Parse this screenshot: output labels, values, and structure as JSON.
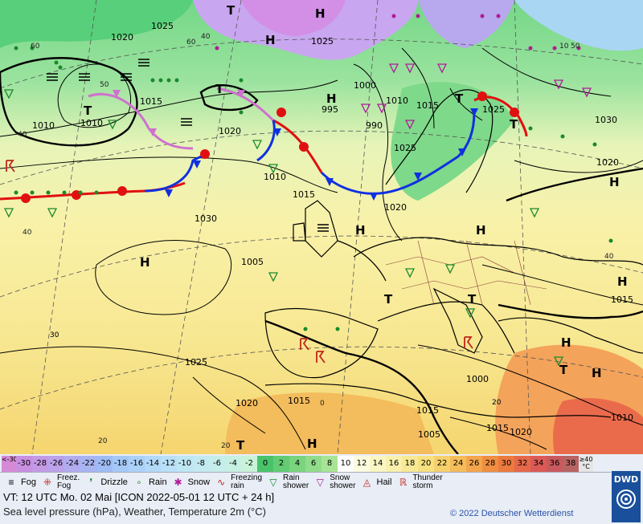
{
  "map": {
    "isobars": [
      "1020",
      "1025",
      "1015",
      "1010",
      "1030",
      "1025",
      "1020",
      "1015",
      "1010",
      "1005",
      "1000",
      "995",
      "990",
      "1025",
      "1020",
      "1015",
      "1010",
      "1020",
      "1025",
      "1030",
      "1015",
      "1020",
      "1025",
      "1015",
      "1010",
      "1005",
      "1000",
      "1015",
      "1020",
      "1015",
      "1010"
    ],
    "pressure_centers": [
      {
        "kind": "H"
      },
      {
        "kind": "H"
      },
      {
        "kind": "T"
      },
      {
        "kind": "T"
      },
      {
        "kind": "H"
      },
      {
        "kind": "T"
      },
      {
        "kind": "H"
      },
      {
        "kind": "H"
      },
      {
        "kind": "H"
      },
      {
        "kind": "H"
      },
      {
        "kind": "T"
      },
      {
        "kind": "T"
      },
      {
        "kind": "H"
      },
      {
        "kind": "T"
      },
      {
        "kind": "T"
      },
      {
        "kind": "H"
      },
      {
        "kind": "H"
      },
      {
        "kind": "T"
      },
      {
        "kind": "H"
      },
      {
        "kind": "T"
      }
    ],
    "temp_labels": [
      "60",
      "50",
      "40",
      "40",
      "40",
      "30",
      "20",
      "20",
      "20",
      "40",
      "50",
      "60",
      "10",
      "0",
      "20",
      "30"
    ],
    "colors": {
      "warm_front": "#e01010",
      "cold_front": "#1030e0",
      "occluded_front": "#d070d0",
      "isobar": "#000000"
    }
  },
  "scale": {
    "cells": [
      {
        "label": "<-30",
        "color": "#d58ad5"
      },
      {
        "label": "-30",
        "color": "#c98fe0"
      },
      {
        "label": "-28",
        "color": "#c49ae6"
      },
      {
        "label": "-26",
        "color": "#bba2ea"
      },
      {
        "label": "-24",
        "color": "#b2acef"
      },
      {
        "label": "-22",
        "color": "#a8b4f2"
      },
      {
        "label": "-20",
        "color": "#9ebcf5"
      },
      {
        "label": "-18",
        "color": "#a5c8f7"
      },
      {
        "label": "-16",
        "color": "#acd1f8"
      },
      {
        "label": "-14",
        "color": "#b3d9f8"
      },
      {
        "label": "-12",
        "color": "#b9e0f7"
      },
      {
        "label": "-10",
        "color": "#bfe6f3"
      },
      {
        "label": "-8",
        "color": "#c3eaf0"
      },
      {
        "label": "-6",
        "color": "#c5eeea"
      },
      {
        "label": "-4",
        "color": "#c6f0e2"
      },
      {
        "label": "-2",
        "color": "#c8f3d9"
      },
      {
        "label": "0",
        "color": "#49c36a"
      },
      {
        "label": "2",
        "color": "#62cc74"
      },
      {
        "label": "4",
        "color": "#79d47e"
      },
      {
        "label": "6",
        "color": "#90dc8a"
      },
      {
        "label": "8",
        "color": "#a8e496"
      },
      {
        "label": "10",
        "color": "#ffffff"
      },
      {
        "label": "12",
        "color": "#fbfbde"
      },
      {
        "label": "14",
        "color": "#f9f6c4"
      },
      {
        "label": "16",
        "color": "#f8f0ac"
      },
      {
        "label": "18",
        "color": "#f7e995"
      },
      {
        "label": "20",
        "color": "#f7e07f"
      },
      {
        "label": "22",
        "color": "#f6d06c"
      },
      {
        "label": "24",
        "color": "#f5bc5a"
      },
      {
        "label": "26",
        "color": "#f3a64c"
      },
      {
        "label": "28",
        "color": "#f08e42"
      },
      {
        "label": "30",
        "color": "#ec7a3f"
      },
      {
        "label": "32",
        "color": "#e6684a"
      },
      {
        "label": "34",
        "color": "#dc5a55"
      },
      {
        "label": "36",
        "color": "#c9595e"
      },
      {
        "label": "38",
        "color": "#b86462"
      },
      {
        "label": "≥40 °C",
        "color": "#e6e6e6"
      }
    ]
  },
  "legend": [
    {
      "icon": "fog-icon",
      "label": "Fog"
    },
    {
      "icon": "freezing-fog-icon",
      "label": "Freez.\nFog"
    },
    {
      "icon": "drizzle-icon",
      "label": "Drizzle"
    },
    {
      "icon": "rain-icon",
      "label": "Rain"
    },
    {
      "icon": "snow-icon",
      "label": "Snow"
    },
    {
      "icon": "freezing-rain-icon",
      "label": "Freezing\nrain"
    },
    {
      "icon": "rain-shower-icon",
      "label": "Rain\nshower"
    },
    {
      "icon": "snow-shower-icon",
      "label": "Snow\nshower"
    },
    {
      "icon": "hail-icon",
      "label": "Hail"
    },
    {
      "icon": "thunderstorm-icon",
      "label": "Thunder\nstorm"
    }
  ],
  "info": {
    "valid_time": "VT: 12 UTC Mo.  02 Mai [ICON 2022-05-01  12 UTC + 24 h]",
    "subtitle": "Sea level pressure (hPa), Weather, Temperature 2m (°C)",
    "copyright": "© 2022 Deutscher Wetterdienst",
    "logo": "DWD"
  }
}
